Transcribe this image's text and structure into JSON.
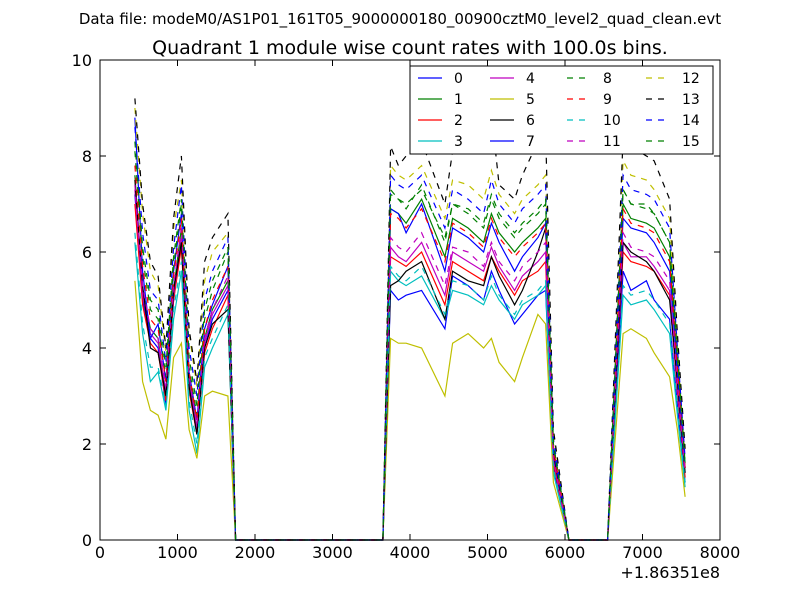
{
  "suptitle": "Data file: modeM0/AS1P01_161T05_9000000180_00900cztM0_level2_quad_clean.evt",
  "chart_data": {
    "type": "line",
    "title": "Quadrant 1 module wise count rates with 100.0s bins.",
    "xlabel": "",
    "ylabel": "",
    "x_offset_label": "+1.86351e8",
    "xlim": [
      0,
      8000
    ],
    "ylim": [
      0,
      10
    ],
    "x_ticks": [
      0,
      1000,
      2000,
      3000,
      4000,
      5000,
      6000,
      7000,
      8000
    ],
    "y_ticks": [
      0,
      2,
      4,
      6,
      8,
      10
    ],
    "grid": false,
    "legend": {
      "position": "top-right",
      "columns": 4
    },
    "series": [
      {
        "name": "0",
        "color": "#0000ff",
        "dashed": false,
        "profile": [
          7.2,
          5.0,
          4.2,
          4.0,
          2.8,
          5.0,
          6.2,
          3.2,
          2.2,
          4.0,
          4.6,
          5.2,
          0,
          0,
          5.2,
          5.0,
          5.1,
          5.2,
          4.4,
          5.5,
          5.3,
          5.0,
          5.6,
          5.2,
          4.5,
          4.7,
          5.1,
          5.2,
          1.5,
          0,
          0,
          0,
          5.6,
          5.2,
          5.4,
          5.0,
          4.6,
          2.8,
          1.2
        ]
      },
      {
        "name": "1",
        "color": "#008000",
        "dashed": false,
        "profile": [
          7.6,
          5.2,
          4.4,
          4.2,
          3.0,
          5.2,
          6.5,
          3.4,
          2.3,
          4.2,
          4.8,
          5.4,
          0,
          0,
          6.9,
          6.8,
          6.6,
          7.1,
          5.9,
          6.7,
          6.5,
          6.2,
          6.8,
          6.4,
          6.0,
          6.2,
          6.5,
          6.7,
          1.9,
          0,
          0,
          0,
          7.0,
          6.7,
          6.6,
          6.5,
          5.9,
          3.6,
          1.5
        ]
      },
      {
        "name": "2",
        "color": "#ff0000",
        "dashed": false,
        "profile": [
          7.0,
          4.9,
          4.1,
          3.9,
          2.9,
          5.0,
          6.1,
          3.1,
          2.2,
          3.9,
          4.4,
          5.1,
          0,
          0,
          5.9,
          5.8,
          5.7,
          6.0,
          4.9,
          5.8,
          5.6,
          5.4,
          5.9,
          5.6,
          5.1,
          5.4,
          5.6,
          5.8,
          1.6,
          0,
          0,
          0,
          6.0,
          5.8,
          5.7,
          5.6,
          5.1,
          3.1,
          1.3
        ]
      },
      {
        "name": "3",
        "color": "#00bfbf",
        "dashed": false,
        "profile": [
          6.2,
          4.3,
          3.3,
          3.5,
          2.7,
          4.6,
          5.6,
          2.7,
          1.8,
          3.6,
          4.0,
          4.7,
          0,
          0,
          5.6,
          5.4,
          5.3,
          5.5,
          4.6,
          5.2,
          5.1,
          4.9,
          5.3,
          5.0,
          4.6,
          4.9,
          5.1,
          5.3,
          1.4,
          0,
          0,
          0,
          5.1,
          4.9,
          5.0,
          4.8,
          4.3,
          2.6,
          1.1
        ]
      },
      {
        "name": "4",
        "color": "#bf00bf",
        "dashed": false,
        "profile": [
          7.3,
          5.1,
          4.3,
          4.1,
          3.1,
          5.1,
          6.3,
          3.3,
          2.3,
          4.1,
          4.7,
          5.3,
          0,
          0,
          6.1,
          5.9,
          5.8,
          6.2,
          5.1,
          6.0,
          5.8,
          5.6,
          6.1,
          5.7,
          5.2,
          5.5,
          5.8,
          6.0,
          1.7,
          0,
          0,
          0,
          6.2,
          5.9,
          5.9,
          5.7,
          5.2,
          3.2,
          1.4
        ]
      },
      {
        "name": "5",
        "color": "#bfbf00",
        "dashed": false,
        "profile": [
          5.4,
          3.3,
          2.7,
          2.6,
          2.1,
          3.8,
          4.1,
          2.3,
          1.7,
          3.0,
          3.1,
          3.0,
          0,
          0,
          4.2,
          4.1,
          4.1,
          4.0,
          3.0,
          4.1,
          4.3,
          4.0,
          4.2,
          3.7,
          3.3,
          3.8,
          4.7,
          4.5,
          1.2,
          0,
          0,
          0,
          4.3,
          4.4,
          4.2,
          3.9,
          3.4,
          2.3,
          0.9
        ]
      },
      {
        "name": "6",
        "color": "#000000",
        "dashed": false,
        "profile": [
          7.5,
          5.3,
          4.0,
          3.9,
          3.0,
          5.2,
          6.2,
          3.2,
          2.2,
          4.0,
          4.5,
          4.8,
          0,
          0,
          5.3,
          5.4,
          5.6,
          5.8,
          4.6,
          5.6,
          5.4,
          5.3,
          5.9,
          5.5,
          4.9,
          5.2,
          6.0,
          6.5,
          1.8,
          0,
          0,
          0,
          6.2,
          6.0,
          5.8,
          5.6,
          5.0,
          3.3,
          1.4
        ]
      },
      {
        "name": "7",
        "color": "#0000ff",
        "dashed": false,
        "profile": [
          8.8,
          5.6,
          4.2,
          4.5,
          3.3,
          5.6,
          6.8,
          3.5,
          2.5,
          4.4,
          4.9,
          5.7,
          0,
          0,
          6.9,
          6.8,
          6.4,
          7.0,
          5.6,
          6.5,
          6.3,
          6.0,
          6.6,
          6.2,
          5.6,
          5.9,
          6.3,
          6.6,
          1.9,
          0,
          0,
          0,
          6.7,
          6.5,
          6.4,
          6.2,
          5.6,
          3.5,
          1.5
        ]
      },
      {
        "name": "8",
        "color": "#008000",
        "dashed": true,
        "profile": [
          8.1,
          5.9,
          4.8,
          4.6,
          3.4,
          5.7,
          7.0,
          3.6,
          2.6,
          4.6,
          5.2,
          6.0,
          0,
          0,
          7.2,
          7.1,
          6.9,
          7.4,
          6.2,
          7.0,
          6.8,
          6.5,
          7.1,
          6.7,
          6.3,
          6.5,
          6.8,
          7.0,
          2.0,
          0,
          0,
          0,
          7.3,
          7.0,
          6.9,
          6.8,
          6.2,
          3.8,
          1.6
        ]
      },
      {
        "name": "9",
        "color": "#ff0000",
        "dashed": true,
        "profile": [
          7.8,
          5.7,
          4.6,
          4.4,
          3.3,
          5.5,
          6.7,
          3.5,
          2.5,
          4.4,
          5.0,
          5.7,
          0,
          0,
          6.8,
          6.7,
          6.5,
          6.9,
          5.8,
          6.6,
          6.4,
          6.1,
          6.7,
          6.3,
          5.9,
          6.1,
          6.4,
          6.6,
          1.9,
          0,
          0,
          0,
          6.9,
          6.6,
          6.5,
          6.4,
          5.8,
          3.6,
          1.5
        ]
      },
      {
        "name": "10",
        "color": "#00bfbf",
        "dashed": true,
        "profile": [
          6.4,
          4.5,
          3.6,
          3.6,
          2.8,
          4.8,
          5.8,
          2.9,
          2.0,
          3.8,
          4.2,
          4.9,
          0,
          0,
          5.7,
          5.5,
          5.4,
          5.7,
          4.7,
          5.4,
          5.3,
          5.0,
          5.5,
          5.1,
          4.7,
          5.0,
          5.2,
          5.4,
          1.5,
          0,
          0,
          0,
          5.3,
          5.1,
          5.2,
          5.0,
          4.5,
          2.8,
          1.2
        ]
      },
      {
        "name": "11",
        "color": "#bf00bf",
        "dashed": true,
        "profile": [
          7.4,
          5.3,
          4.4,
          4.2,
          3.2,
          5.3,
          6.5,
          3.4,
          2.4,
          4.2,
          4.8,
          5.5,
          0,
          0,
          6.3,
          6.1,
          6.0,
          6.4,
          5.3,
          6.1,
          6.0,
          5.7,
          6.2,
          5.8,
          5.4,
          5.7,
          6.0,
          6.2,
          1.7,
          0,
          0,
          0,
          6.4,
          6.1,
          6.0,
          5.9,
          5.4,
          3.3,
          1.4
        ]
      },
      {
        "name": "12",
        "color": "#bfbf00",
        "dashed": true,
        "profile": [
          9.0,
          6.8,
          5.6,
          5.3,
          3.9,
          6.5,
          7.5,
          4.3,
          3.2,
          5.4,
          6.0,
          6.4,
          0,
          0,
          7.8,
          7.6,
          7.5,
          7.8,
          6.7,
          7.5,
          7.4,
          7.1,
          7.7,
          7.2,
          6.8,
          7.1,
          7.4,
          7.6,
          2.2,
          0,
          0,
          0,
          7.9,
          7.6,
          7.5,
          7.3,
          6.7,
          4.1,
          1.8
        ]
      },
      {
        "name": "13",
        "color": "#000000",
        "dashed": true,
        "profile": [
          9.2,
          7.0,
          5.8,
          5.5,
          4.0,
          6.7,
          8.0,
          4.4,
          3.3,
          5.8,
          6.3,
          6.8,
          0,
          0,
          8.2,
          7.8,
          8.0,
          8.3,
          7.0,
          8.1,
          8.4,
          8.7,
          8.9,
          7.4,
          7.1,
          7.6,
          8.3,
          8.5,
          2.3,
          0,
          0,
          0,
          8.4,
          8.2,
          8.0,
          7.9,
          7.1,
          4.3,
          1.9
        ]
      },
      {
        "name": "14",
        "color": "#0000ff",
        "dashed": true,
        "profile": [
          8.6,
          6.4,
          5.2,
          5.0,
          3.7,
          6.1,
          7.4,
          4.0,
          3.0,
          5.0,
          5.6,
          6.3,
          0,
          0,
          7.6,
          7.4,
          7.3,
          7.6,
          6.5,
          7.3,
          7.1,
          6.8,
          7.5,
          7.0,
          6.6,
          6.9,
          7.2,
          7.4,
          2.1,
          0,
          0,
          0,
          7.6,
          7.3,
          7.2,
          7.1,
          6.5,
          4.0,
          1.7
        ]
      },
      {
        "name": "15",
        "color": "#008000",
        "dashed": true,
        "profile": [
          8.3,
          6.1,
          5.0,
          4.8,
          3.6,
          5.9,
          7.1,
          3.8,
          2.8,
          4.8,
          5.4,
          6.1,
          0,
          0,
          7.3,
          7.1,
          7.0,
          7.3,
          6.3,
          7.0,
          6.9,
          6.6,
          7.2,
          6.8,
          6.4,
          6.6,
          6.9,
          7.1,
          2.0,
          0,
          0,
          0,
          7.3,
          7.0,
          7.0,
          6.8,
          6.2,
          3.9,
          1.6
        ]
      }
    ],
    "anchor_x": [
      450,
      550,
      650,
      750,
      850,
      950,
      1050,
      1150,
      1250,
      1350,
      1450,
      1650,
      1750,
      3650,
      3750,
      3850,
      3950,
      4150,
      4450,
      4550,
      4750,
      4950,
      5050,
      5150,
      5350,
      5450,
      5650,
      5750,
      5850,
      6050,
      6450,
      6550,
      6750,
      6850,
      7050,
      7150,
      7350,
      7450,
      7550
    ]
  }
}
